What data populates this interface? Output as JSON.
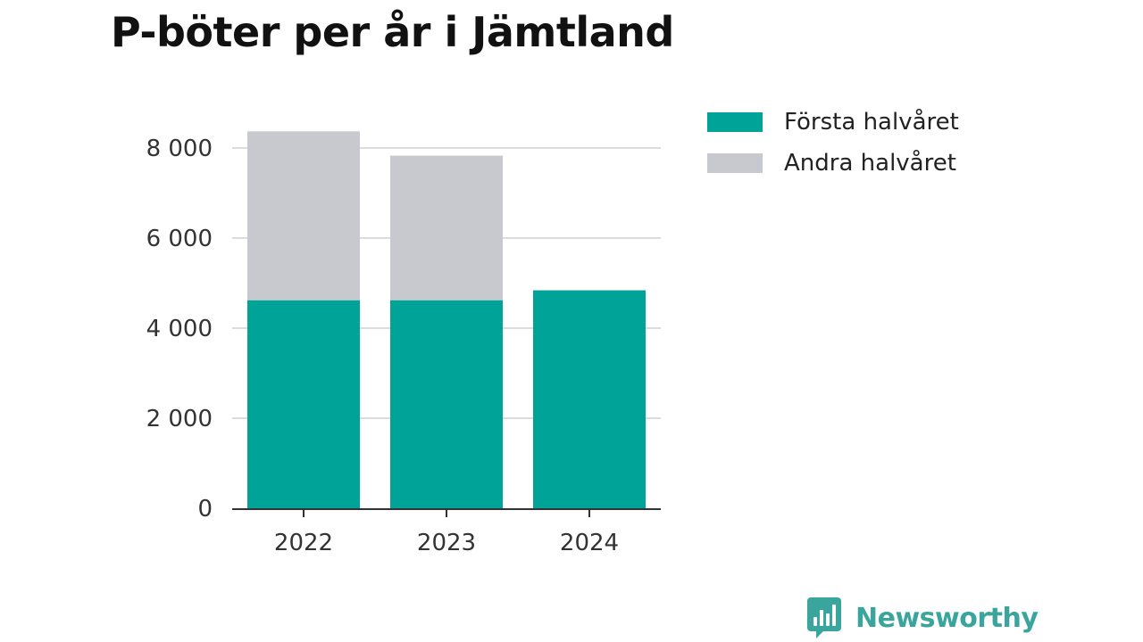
{
  "title": "P-böter per år i Jämtland",
  "brand": {
    "name": "Newsworthy",
    "color": "#3aa59c"
  },
  "chart_data": {
    "type": "bar",
    "stacked": true,
    "title": "P-böter per år i Jämtland",
    "xlabel": "",
    "ylabel": "",
    "categories": [
      "2022",
      "2023",
      "2024"
    ],
    "ylim": [
      0,
      8000
    ],
    "yticks": [
      0,
      2000,
      4000,
      6000,
      8000
    ],
    "ytick_labels": [
      "0",
      "2 000",
      "4 000",
      "6 000",
      "8 000"
    ],
    "grid": true,
    "legend_position": "top-right",
    "series": [
      {
        "name": "Första halvåret",
        "color": "#00a398",
        "values": [
          4620,
          4620,
          4840
        ]
      },
      {
        "name": "Andra halvåret",
        "color": "#c8c8cf",
        "values": [
          3750,
          3210,
          null
        ]
      }
    ]
  }
}
